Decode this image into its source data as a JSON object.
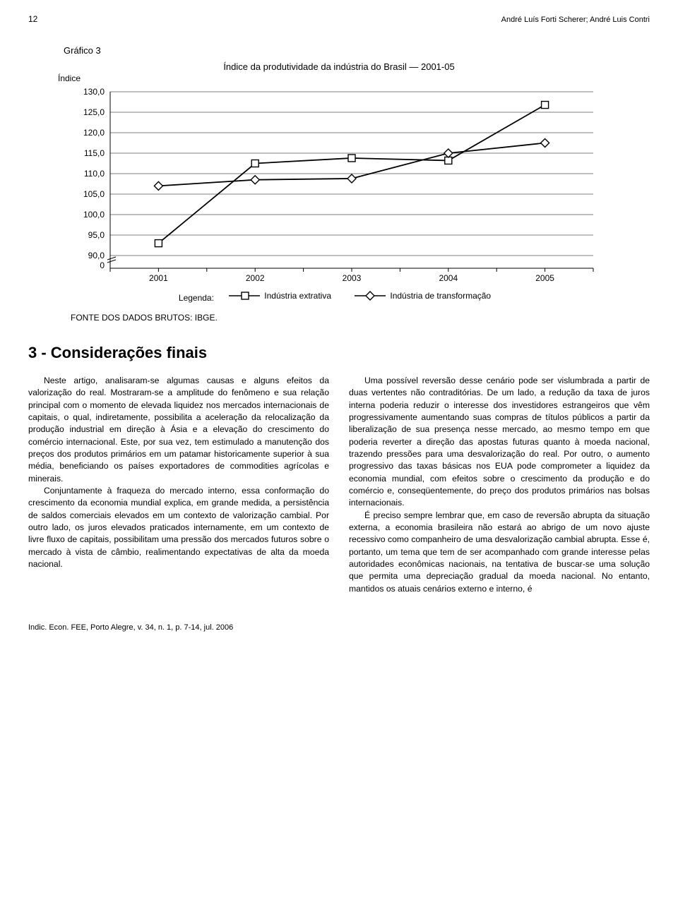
{
  "header": {
    "page_number": "12",
    "authors": "André Luís Forti Scherer; André Luis Contri"
  },
  "chart": {
    "label": "Gráfico 3",
    "title": "Índice da produtividade da indústria do Brasil — 2001-05",
    "y_axis_label": "Índice",
    "type": "line",
    "x_categories": [
      "2001",
      "2002",
      "2003",
      "2004",
      "2005"
    ],
    "y_ticks": [
      "90,0",
      "95,0",
      "100,0",
      "105,0",
      "110,0",
      "115,0",
      "120,0",
      "125,0",
      "130,0"
    ],
    "y_min": 90,
    "y_max": 130,
    "y_break_zero": "0",
    "series": [
      {
        "name": "Indústria extrativa",
        "marker": "square",
        "values": [
          93.0,
          112.5,
          113.8,
          113.2,
          126.8
        ]
      },
      {
        "name": "Indústria de transformação",
        "marker": "diamond",
        "values": [
          107.0,
          108.5,
          108.8,
          115.0,
          117.5
        ]
      }
    ],
    "line_color": "#000000",
    "marker_fill": "#ffffff",
    "marker_stroke": "#000000",
    "background_color": "#ffffff",
    "grid_color": "#000000",
    "font_size_labels": 12,
    "font_size_title": 13,
    "line_width": 1.8,
    "legend_label": "Legenda:",
    "fonte": "FONTE DOS DADOS BRUTOS: IBGE."
  },
  "section": {
    "heading": "3 - Considerações finais",
    "col1": {
      "p1": "Neste artigo, analisaram-se algumas causas e alguns efeitos da valorização do real.  Mostraram-se a amplitude do fenômeno e sua relação principal com o momento de elevada liquidez nos mercados internacionais de capitais, o qual, indiretamente, possibilita a aceleração da relocalização da produção industrial em direção à Ásia e a elevação do crescimento do comércio internacional. Este, por sua vez, tem estimulado a manutenção dos preços dos produtos primários em um patamar historicamente superior à sua média, beneficiando os países exportadores de commodities agrícolas e minerais.",
      "p2": "Conjuntamente à fraqueza do mercado interno, essa conformação do crescimento da economia mundial explica, em grande medida, a persistência de saldos comerciais elevados em um contexto de valorização cambial. Por outro lado, os juros elevados praticados internamente, em um contexto de livre fluxo de capitais, possibilitam uma pressão dos mercados futuros sobre o mercado à vista de câmbio, realimentando expectativas de alta da moeda nacional."
    },
    "col2": {
      "p1": "Uma possível reversão desse cenário pode ser vislumbrada a partir de duas vertentes não contraditórias. De um lado, a redução da taxa de juros interna poderia reduzir o interesse dos investidores estrangeiros que vêm progressivamente aumentando suas compras de títulos públicos a partir da liberalização de sua presença nesse mercado, ao mesmo tempo em que poderia reverter a direção das apostas futuras quanto à moeda nacional, trazendo pressões para uma desvalorização do real. Por outro, o aumento progressivo das taxas básicas nos EUA pode comprometer a liquidez da economia mundial, com efeitos sobre o crescimento da produção e do comércio e, conseqüentemente, do preço dos produtos primários nas bolsas internacionais.",
      "p2": "É preciso sempre lembrar que, em caso de reversão abrupta da situação externa, a economia brasileira não estará ao abrigo de um novo ajuste recessivo como companheiro de uma desvalorização cambial abrupta. Esse é, portanto, um tema que tem de ser acompanhado com grande interesse pelas autoridades econômicas nacionais, na tentativa de buscar-se uma solução que permita uma depreciação gradual da moeda nacional. No entanto, mantidos os atuais cenários externo e interno, é"
    }
  },
  "footer": "Indic. Econ. FEE, Porto Alegre, v. 34, n. 1, p. 7-14, jul. 2006"
}
